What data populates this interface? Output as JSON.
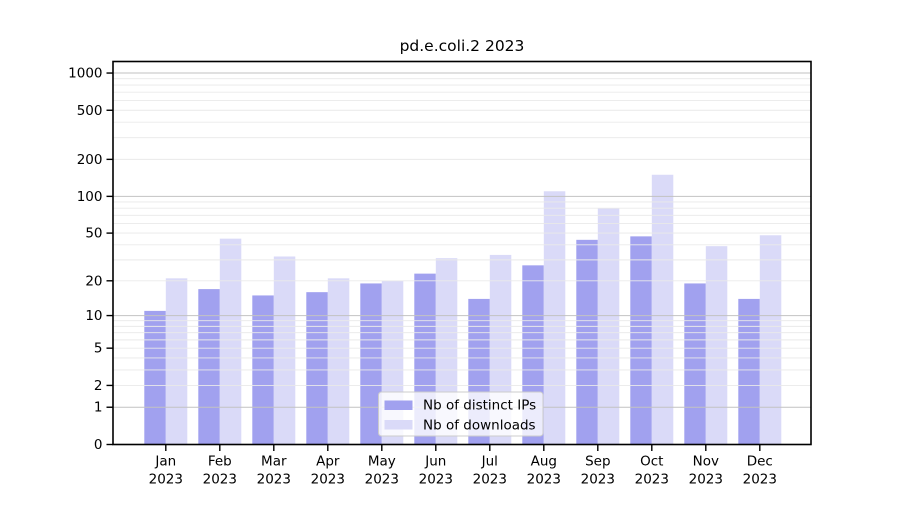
{
  "figure": {
    "title": "pd.e.coli.2 2023"
  },
  "chart_data": {
    "type": "bar",
    "title": "pd.e.coli.2 2023",
    "categories": [
      "Jan 2023",
      "Feb 2023",
      "Mar 2023",
      "Apr 2023",
      "May 2023",
      "Jun 2023",
      "Jul 2023",
      "Aug 2023",
      "Sep 2023",
      "Oct 2023",
      "Nov 2023",
      "Dec 2023"
    ],
    "x_tick_months": [
      "Jan",
      "Feb",
      "Mar",
      "Apr",
      "May",
      "Jun",
      "Jul",
      "Aug",
      "Sep",
      "Oct",
      "Nov",
      "Dec"
    ],
    "x_tick_year": "2023",
    "series": [
      {
        "name": "Nb of distinct IPs",
        "color": "#a1a1ef",
        "values": [
          11,
          17,
          15,
          16,
          19,
          23,
          14,
          27,
          44,
          47,
          19,
          14
        ]
      },
      {
        "name": "Nb of downloads",
        "color": "#dadaf8",
        "values": [
          21,
          45,
          32,
          21,
          20,
          31,
          33,
          110,
          80,
          150,
          39,
          48
        ]
      }
    ],
    "xlabel": "",
    "ylabel": "",
    "y_scale": "log10(1+x)",
    "y_ticks": [
      0,
      1,
      2,
      5,
      10,
      20,
      50,
      100,
      200,
      500,
      1000
    ],
    "ylim": [
      0,
      1240
    ],
    "grid": {
      "major_values": [
        1,
        10,
        100,
        1000
      ],
      "minor_values": [
        2,
        3,
        4,
        5,
        6,
        7,
        8,
        9,
        20,
        30,
        40,
        50,
        60,
        70,
        80,
        90,
        200,
        300,
        400,
        500,
        600,
        700,
        800,
        900
      ]
    },
    "legend": {
      "position": "lower-center",
      "frame_alpha": 0.8
    }
  },
  "colors": {
    "background": "#ffffff",
    "axis_frame": "#000000",
    "grid_major": "#c2c2c2",
    "grid_minor": "#e9e9e9",
    "legend_border": "#cccccc",
    "text": "#000000"
  }
}
